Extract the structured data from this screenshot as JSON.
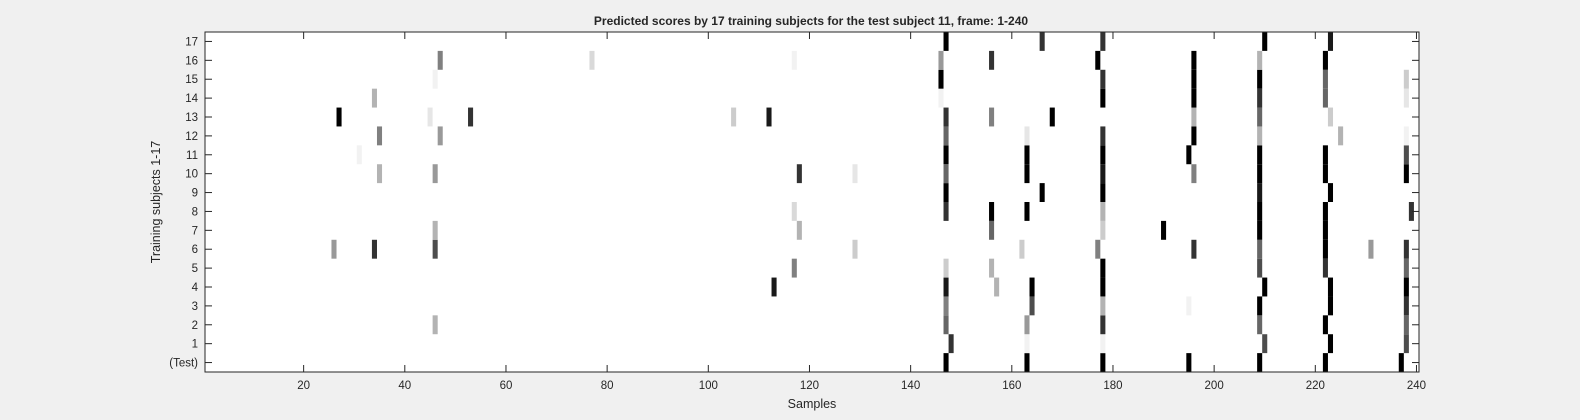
{
  "chart_data": {
    "type": "heatmap",
    "title": "Predicted scores by 17 training subjects for the test subject 11, frame: 1-240",
    "xlabel": "Samples",
    "ylabel": "Training subjects 1-17",
    "xlim": [
      1,
      240
    ],
    "x_ticks": [
      20,
      40,
      60,
      80,
      100,
      120,
      140,
      160,
      180,
      200,
      220,
      240
    ],
    "rows": [
      "(Test)",
      "1",
      "2",
      "3",
      "4",
      "5",
      "6",
      "7",
      "8",
      "9",
      "10",
      "11",
      "12",
      "13",
      "14",
      "15",
      "16",
      "17"
    ],
    "colormap": "gray (0 = white, 1 = black)",
    "grid": false,
    "cells": [
      {
        "row": "(Test)",
        "points": [
          [
            147,
            1
          ],
          [
            163,
            1
          ],
          [
            178,
            1
          ],
          [
            195,
            1
          ],
          [
            209,
            1
          ],
          [
            222,
            1
          ],
          [
            237,
            1
          ]
        ]
      },
      {
        "row": "1",
        "points": [
          [
            148,
            0.8
          ],
          [
            163,
            0.05
          ],
          [
            178,
            0.05
          ],
          [
            210,
            0.7
          ],
          [
            223,
            1
          ],
          [
            238,
            0.7
          ]
        ]
      },
      {
        "row": "2",
        "points": [
          [
            46,
            0.3
          ],
          [
            147,
            0.6
          ],
          [
            163,
            0.4
          ],
          [
            178,
            0.8
          ],
          [
            209,
            0.6
          ],
          [
            222,
            1
          ],
          [
            238,
            0.6
          ]
        ]
      },
      {
        "row": "3",
        "points": [
          [
            147,
            0.5
          ],
          [
            164,
            0.7
          ],
          [
            178,
            0.3
          ],
          [
            195,
            0.05
          ],
          [
            209,
            1
          ],
          [
            223,
            1
          ],
          [
            238,
            0.8
          ]
        ]
      },
      {
        "row": "4",
        "points": [
          [
            113,
            0.9
          ],
          [
            147,
            0.9
          ],
          [
            157,
            0.3
          ],
          [
            164,
            1
          ],
          [
            178,
            1
          ],
          [
            210,
            1
          ],
          [
            223,
            1
          ],
          [
            238,
            1
          ]
        ]
      },
      {
        "row": "5",
        "points": [
          [
            117,
            0.5
          ],
          [
            147,
            0.2
          ],
          [
            156,
            0.3
          ],
          [
            178,
            1
          ],
          [
            209,
            0.7
          ],
          [
            222,
            0.8
          ],
          [
            238,
            0.6
          ]
        ]
      },
      {
        "row": "6",
        "points": [
          [
            26,
            0.4
          ],
          [
            34,
            0.8
          ],
          [
            46,
            0.7
          ],
          [
            129,
            0.2
          ],
          [
            162,
            0.2
          ],
          [
            177,
            0.5
          ],
          [
            196,
            0.8
          ],
          [
            209,
            0.6
          ],
          [
            222,
            1
          ],
          [
            231,
            0.4
          ],
          [
            238,
            0.8
          ]
        ]
      },
      {
        "row": "7",
        "points": [
          [
            46,
            0.3
          ],
          [
            118,
            0.3
          ],
          [
            156,
            0.6
          ],
          [
            178,
            0.2
          ],
          [
            190,
            1
          ],
          [
            209,
            1
          ],
          [
            222,
            1
          ]
        ]
      },
      {
        "row": "8",
        "points": [
          [
            117,
            0.15
          ],
          [
            147,
            0.8
          ],
          [
            156,
            1
          ],
          [
            163,
            1
          ],
          [
            178,
            0.3
          ],
          [
            209,
            1
          ],
          [
            222,
            1
          ],
          [
            239,
            0.8
          ]
        ]
      },
      {
        "row": "9",
        "points": [
          [
            147,
            1
          ],
          [
            166,
            1
          ],
          [
            178,
            1
          ],
          [
            209,
            0.9
          ],
          [
            223,
            1
          ]
        ]
      },
      {
        "row": "10",
        "points": [
          [
            35,
            0.3
          ],
          [
            46,
            0.4
          ],
          [
            118,
            0.8
          ],
          [
            129,
            0.1
          ],
          [
            147,
            0.6
          ],
          [
            163,
            1
          ],
          [
            178,
            0.9
          ],
          [
            196,
            0.5
          ],
          [
            209,
            1
          ],
          [
            222,
            1
          ],
          [
            238,
            1
          ]
        ]
      },
      {
        "row": "11",
        "points": [
          [
            31,
            0.05
          ],
          [
            147,
            1
          ],
          [
            163,
            1
          ],
          [
            178,
            1
          ],
          [
            195,
            1
          ],
          [
            209,
            1
          ],
          [
            222,
            1
          ],
          [
            238,
            0.7
          ]
        ]
      },
      {
        "row": "12",
        "points": [
          [
            35,
            0.5
          ],
          [
            47,
            0.4
          ],
          [
            147,
            0.6
          ],
          [
            163,
            0.1
          ],
          [
            178,
            0.8
          ],
          [
            196,
            1
          ],
          [
            209,
            0.3
          ],
          [
            225,
            0.3
          ],
          [
            238,
            0.05
          ]
        ]
      },
      {
        "row": "13",
        "points": [
          [
            27,
            1
          ],
          [
            45,
            0.1
          ],
          [
            53,
            0.8
          ],
          [
            105,
            0.2
          ],
          [
            112,
            0.9
          ],
          [
            147,
            0.8
          ],
          [
            156,
            0.5
          ],
          [
            168,
            1
          ],
          [
            196,
            0.3
          ],
          [
            209,
            0.6
          ],
          [
            223,
            0.2
          ]
        ]
      },
      {
        "row": "14",
        "points": [
          [
            34,
            0.3
          ],
          [
            146,
            0.05
          ],
          [
            178,
            1
          ],
          [
            196,
            1
          ],
          [
            209,
            0.8
          ],
          [
            222,
            0.6
          ],
          [
            238,
            0.1
          ]
        ]
      },
      {
        "row": "15",
        "points": [
          [
            46,
            0.05
          ],
          [
            146,
            1
          ],
          [
            178,
            0.8
          ],
          [
            196,
            1
          ],
          [
            209,
            1
          ],
          [
            222,
            0.6
          ],
          [
            238,
            0.2
          ]
        ]
      },
      {
        "row": "16",
        "points": [
          [
            47,
            0.5
          ],
          [
            77,
            0.15
          ],
          [
            117,
            0.05
          ],
          [
            146,
            0.4
          ],
          [
            156,
            0.8
          ],
          [
            177,
            1
          ],
          [
            196,
            1
          ],
          [
            209,
            0.3
          ],
          [
            222,
            1
          ]
        ]
      },
      {
        "row": "17",
        "points": [
          [
            147,
            1
          ],
          [
            166,
            0.8
          ],
          [
            178,
            0.8
          ],
          [
            210,
            1
          ],
          [
            223,
            0.9
          ]
        ]
      }
    ]
  }
}
